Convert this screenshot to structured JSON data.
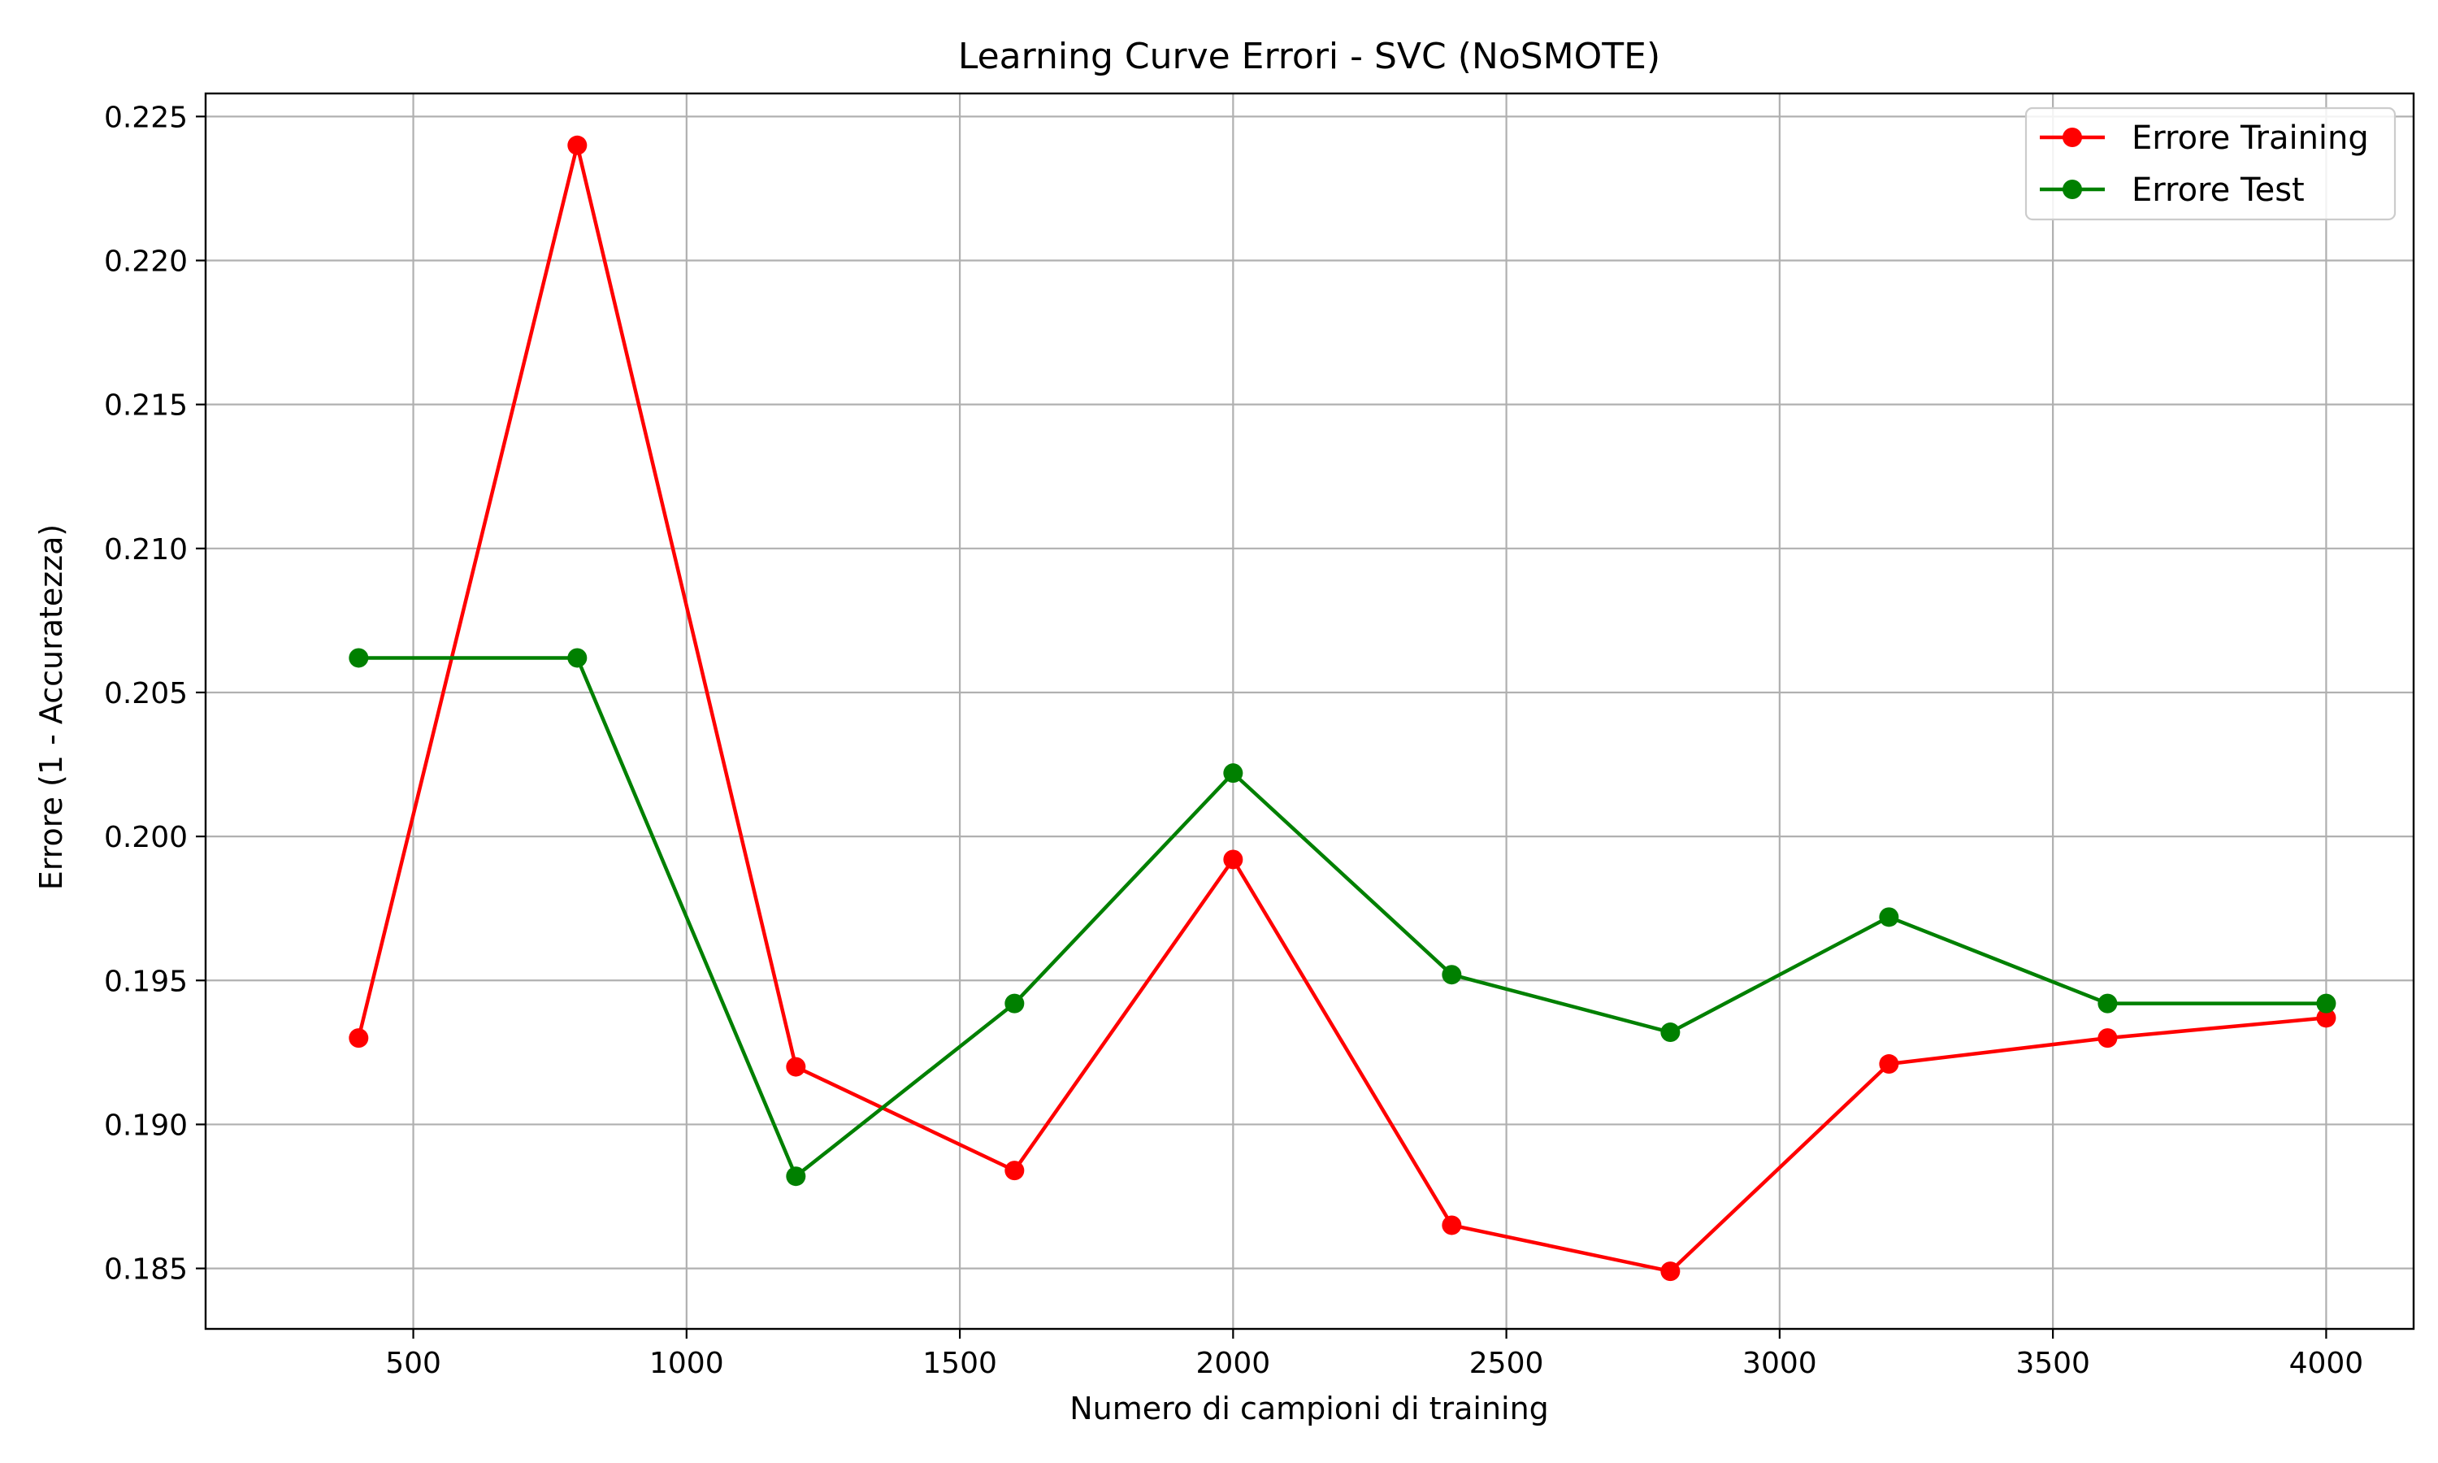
{
  "chart_data": {
    "type": "line",
    "title": "Learning Curve Errori - SVC (NoSMOTE)",
    "xlabel": "Numero di campioni di training",
    "ylabel": "Errore (1 - Accuratezza)",
    "xlim": [
      120,
      4160
    ],
    "ylim": [
      0.1829,
      0.2258
    ],
    "xticks": [
      500,
      1000,
      1500,
      2000,
      2500,
      3000,
      3500,
      4000
    ],
    "xtick_labels": [
      "500",
      "1000",
      "1500",
      "2000",
      "2500",
      "3000",
      "3500",
      "4000"
    ],
    "yticks": [
      0.185,
      0.19,
      0.195,
      0.2,
      0.205,
      0.21,
      0.215,
      0.22,
      0.225
    ],
    "ytick_labels": [
      "0.185",
      "0.190",
      "0.195",
      "0.200",
      "0.205",
      "0.210",
      "0.215",
      "0.220",
      "0.225"
    ],
    "grid": true,
    "legend_position": "top-right",
    "x": [
      400,
      800,
      1200,
      1600,
      2000,
      2400,
      2800,
      3200,
      3600,
      4000
    ],
    "series": [
      {
        "name": "Errore Training",
        "color": "#ff0000",
        "marker": "circle",
        "values": [
          0.193,
          0.224,
          0.192,
          0.1884,
          0.1992,
          0.1865,
          0.1849,
          0.1921,
          0.193,
          0.1937
        ]
      },
      {
        "name": "Errore Test",
        "color": "#008000",
        "marker": "circle",
        "values": [
          0.2062,
          0.2062,
          0.1882,
          0.1942,
          0.2022,
          0.1952,
          0.1932,
          0.1972,
          0.1942,
          0.1942
        ]
      }
    ]
  }
}
